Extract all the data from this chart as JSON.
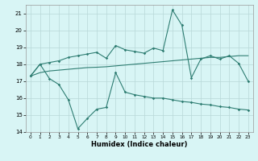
{
  "xlabel": "Humidex (Indice chaleur)",
  "x_values": [
    0,
    1,
    2,
    3,
    4,
    5,
    6,
    7,
    8,
    9,
    10,
    11,
    12,
    13,
    14,
    15,
    16,
    17,
    18,
    19,
    20,
    21,
    22,
    23
  ],
  "line_upper": [
    17.3,
    18.0,
    18.1,
    18.2,
    18.4,
    18.5,
    18.6,
    18.7,
    18.35,
    19.1,
    18.85,
    18.75,
    18.65,
    18.95,
    18.8,
    21.2,
    20.3,
    17.2,
    18.3,
    18.5,
    18.3,
    18.5,
    18.05,
    17.0
  ],
  "line_trend": [
    17.3,
    17.5,
    17.6,
    17.65,
    17.7,
    17.75,
    17.8,
    17.82,
    17.85,
    17.9,
    17.95,
    18.0,
    18.05,
    18.1,
    18.15,
    18.2,
    18.25,
    18.3,
    18.35,
    18.4,
    18.4,
    18.45,
    18.5,
    18.5
  ],
  "line_lower": [
    17.3,
    18.0,
    17.15,
    16.8,
    15.9,
    14.2,
    14.8,
    15.35,
    15.45,
    17.5,
    16.35,
    16.2,
    16.1,
    16.0,
    16.0,
    15.9,
    15.8,
    15.75,
    15.65,
    15.6,
    15.5,
    15.45,
    15.35,
    15.3
  ],
  "line_color": "#2e7d72",
  "bg_color": "#d8f5f5",
  "grid_color": "#b8d8d8",
  "ylim": [
    14.0,
    21.5
  ],
  "yticks": [
    14,
    15,
    16,
    17,
    18,
    19,
    20,
    21
  ],
  "xlim": [
    -0.5,
    23.5
  ],
  "xticks": [
    0,
    1,
    2,
    3,
    4,
    5,
    6,
    7,
    8,
    9,
    10,
    11,
    12,
    13,
    14,
    15,
    16,
    17,
    18,
    19,
    20,
    21,
    22,
    23
  ]
}
